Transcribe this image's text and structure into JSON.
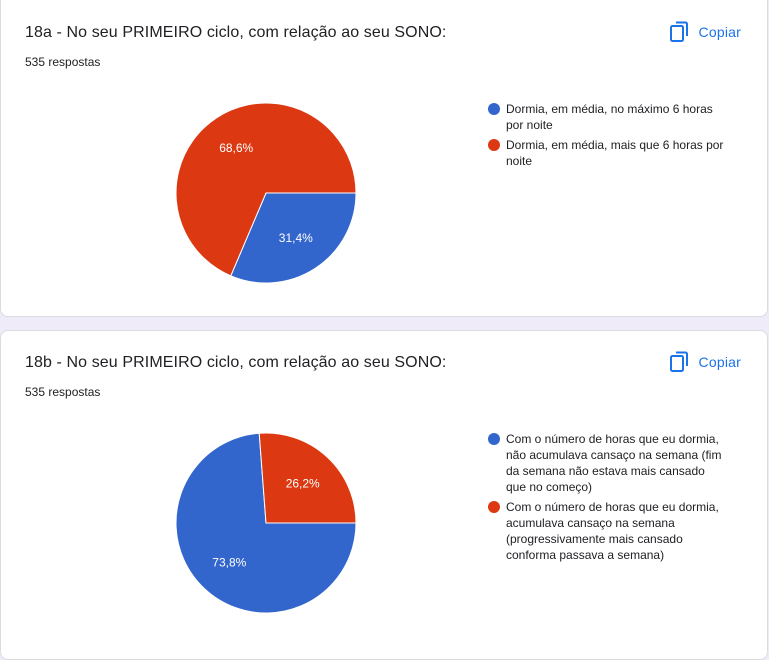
{
  "copy_label": "Copiar",
  "colors": {
    "blue": "#3366cc",
    "red": "#dc3912",
    "accent": "#1a73e8"
  },
  "chart_data": [
    {
      "type": "pie",
      "title": "18a - No seu PRIMEIRO ciclo, com relação ao seu SONO:",
      "responses": "535 respostas",
      "labels": [
        "Dormia, em média, no máximo 6 horas por noite",
        "Dormia, em média, mais que 6 horas por noite"
      ],
      "values": [
        31.4,
        68.6
      ],
      "value_labels": [
        "31,4%",
        "68,6%"
      ],
      "colors": [
        "#3366cc",
        "#dc3912"
      ],
      "legend": "right"
    },
    {
      "type": "pie",
      "title": "18b - No seu PRIMEIRO ciclo, com relação ao seu SONO:",
      "responses": "535 respostas",
      "labels": [
        "Com o número de horas que eu dormia, não acumulava cansaço na semana (fim da semana não estava mais cansado que no começo)",
        "Com o número de horas que eu dormia, acumulava cansaço na semana (progressivamente mais cansado conforma passava a semana)"
      ],
      "values": [
        73.8,
        26.2
      ],
      "value_labels": [
        "73,8%",
        "26,2%"
      ],
      "colors": [
        "#3366cc",
        "#dc3912"
      ],
      "legend": "right"
    }
  ]
}
